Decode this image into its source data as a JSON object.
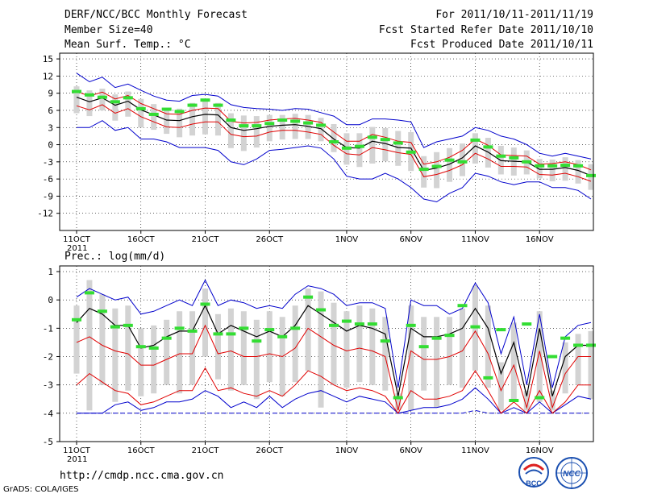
{
  "header": {
    "title": "DERF/NCC/BCC Monthly Forecast",
    "member_size": "Member Size=40",
    "variable": "Mean Surf. Temp.: °C",
    "period": "For 2011/10/11-2011/11/19",
    "started": "Fcst Started Refer Date 2011/10/10",
    "produced": "Fcst Produced Date 2011/10/11"
  },
  "footer": {
    "url": "http://cmdp.ncc.cma.gov.cn",
    "credit": "GrADS: COLA/IGES",
    "logo_bcc": "BCC",
    "logo_ncc": "NCC"
  },
  "colors": {
    "mean": "#000000",
    "spread": "#e00000",
    "extreme": "#0000cc",
    "box": "#d3d3d3",
    "climatology": "#33dd33",
    "grid": "#000000"
  },
  "chart_data": [
    {
      "type": "line",
      "title": "Mean Surf. Temp.: °C",
      "x_start_day": 11,
      "x_ticks": [
        {
          "index": 0,
          "label": "11OCT",
          "sub": "2011"
        },
        {
          "index": 5,
          "label": "16OCT"
        },
        {
          "index": 10,
          "label": "21OCT"
        },
        {
          "index": 15,
          "label": "26OCT"
        },
        {
          "index": 21,
          "label": "1NOV"
        },
        {
          "index": 26,
          "label": "6NOV"
        },
        {
          "index": 31,
          "label": "11NOV"
        },
        {
          "index": 36,
          "label": "16NOV"
        }
      ],
      "ylim": [
        -15,
        16
      ],
      "yticks": [
        15,
        12,
        9,
        6,
        3,
        0,
        -3,
        -6,
        -9,
        -12
      ],
      "series": [
        {
          "name": "ensemble-mean",
          "values": [
            8.3,
            7.5,
            8.2,
            6.9,
            7.6,
            6.1,
            5.2,
            4.3,
            4.2,
            4.9,
            5.3,
            5.2,
            3.0,
            2.5,
            2.8,
            3.2,
            3.4,
            3.5,
            3.2,
            2.8,
            1.0,
            -0.5,
            -0.6,
            0.6,
            0.2,
            -0.5,
            -0.6,
            -4.5,
            -4.1,
            -3.4,
            -2.3,
            -0.2,
            -1.3,
            -2.8,
            -2.9,
            -3.0,
            -4.3,
            -4.3,
            -4.0,
            -4.5,
            -5.4
          ]
        },
        {
          "name": "upper-spread",
          "values": [
            9.3,
            8.5,
            9.2,
            8.0,
            8.6,
            7.2,
            6.3,
            5.4,
            5.3,
            6.0,
            6.4,
            6.3,
            4.1,
            3.8,
            3.9,
            4.3,
            4.5,
            4.6,
            4.3,
            3.9,
            2.2,
            0.6,
            0.6,
            1.8,
            1.3,
            0.6,
            0.4,
            -3.4,
            -3.0,
            -2.2,
            -1.0,
            1.0,
            -0.1,
            -1.8,
            -1.9,
            -2.0,
            -3.4,
            -3.3,
            -3.0,
            -3.5,
            -4.4
          ]
        },
        {
          "name": "lower-spread",
          "values": [
            6.8,
            6.1,
            7.0,
            5.5,
            6.3,
            4.9,
            4.0,
            3.1,
            3.0,
            3.6,
            4.0,
            4.0,
            1.8,
            1.4,
            1.5,
            2.2,
            2.5,
            2.5,
            2.2,
            1.8,
            -0.1,
            -1.6,
            -1.8,
            -0.5,
            -0.9,
            -1.4,
            -1.7,
            -5.6,
            -5.2,
            -4.5,
            -3.5,
            -1.5,
            -2.5,
            -3.8,
            -3.8,
            -3.9,
            -5.2,
            -5.3,
            -5.0,
            -5.6,
            -6.4
          ]
        },
        {
          "name": "ensemble-max",
          "values": [
            12.5,
            11.0,
            11.8,
            10.0,
            10.6,
            9.5,
            8.5,
            7.8,
            7.6,
            8.6,
            8.8,
            8.5,
            7.0,
            6.5,
            6.3,
            6.2,
            6.0,
            6.3,
            6.2,
            5.6,
            5.0,
            3.5,
            3.5,
            4.5,
            4.5,
            4.3,
            4.0,
            -0.5,
            0.5,
            1.0,
            1.5,
            3.0,
            2.5,
            1.5,
            1.0,
            0.0,
            -1.5,
            -2.0,
            -1.5,
            -2.0,
            -2.5
          ]
        },
        {
          "name": "ensemble-min",
          "values": [
            3.0,
            3.0,
            4.2,
            2.5,
            3.0,
            1.0,
            1.0,
            0.5,
            -0.5,
            -0.5,
            -0.5,
            -1.0,
            -3.0,
            -3.5,
            -2.5,
            -1.0,
            -0.8,
            -0.5,
            -0.2,
            -0.6,
            -2.5,
            -5.5,
            -6.0,
            -6.0,
            -5.0,
            -6.0,
            -7.5,
            -9.5,
            -10.0,
            -8.5,
            -7.5,
            -5.0,
            -5.5,
            -6.5,
            -7.0,
            -6.5,
            -6.5,
            -7.5,
            -7.5,
            -8.0,
            -9.5
          ]
        },
        {
          "name": "climatology",
          "values": [
            9.3,
            8.7,
            8.3,
            7.5,
            8.2,
            6.3,
            5.3,
            6.2,
            5.8,
            6.9,
            7.8,
            6.9,
            4.3,
            3.3,
            3.3,
            3.7,
            4.3,
            4.1,
            3.8,
            3.4,
            0.5,
            -0.6,
            -0.3,
            1.3,
            0.9,
            0.3,
            -1.3,
            -4.3,
            -3.8,
            -2.7,
            -3.0,
            0.8,
            -0.4,
            -2.0,
            -2.3,
            -3.0,
            -3.7,
            -3.7,
            -3.6,
            -3.7,
            -5.4
          ]
        },
        {
          "name": "box-high",
          "values": [
            10.2,
            9.5,
            9.8,
            8.8,
            9.3,
            8.0,
            7.1,
            6.4,
            6.3,
            7.3,
            7.6,
            7.3,
            5.5,
            5.1,
            5.0,
            5.2,
            5.2,
            5.4,
            5.2,
            4.7,
            3.6,
            2.0,
            2.0,
            3.1,
            2.9,
            2.4,
            2.2,
            -2.0,
            -1.3,
            -0.6,
            0.2,
            2.0,
            1.2,
            -0.2,
            -0.5,
            -1.0,
            -2.5,
            -2.6,
            -2.2,
            -2.7,
            -3.4
          ]
        },
        {
          "name": "box-low",
          "values": [
            5.5,
            5.0,
            6.0,
            4.2,
            4.9,
            3.0,
            2.6,
            1.9,
            1.3,
            1.6,
            1.8,
            1.6,
            -0.6,
            -1.1,
            -0.5,
            0.6,
            0.9,
            1.0,
            1.0,
            0.6,
            -1.3,
            -3.5,
            -3.9,
            -3.3,
            -2.9,
            -3.7,
            -4.6,
            -7.5,
            -7.6,
            -6.5,
            -5.5,
            -3.3,
            -4.0,
            -5.2,
            -5.4,
            -5.2,
            -5.9,
            -6.4,
            -6.3,
            -6.8,
            -7.9
          ]
        }
      ]
    },
    {
      "type": "line",
      "title": "Prec.: log(mm/d)",
      "x_ticks": [
        {
          "index": 0,
          "label": "11OCT",
          "sub": "2011"
        },
        {
          "index": 5,
          "label": "16OCT"
        },
        {
          "index": 10,
          "label": "21OCT"
        },
        {
          "index": 15,
          "label": "26OCT"
        },
        {
          "index": 21,
          "label": "1NOV"
        },
        {
          "index": 26,
          "label": "6NOV"
        },
        {
          "index": 31,
          "label": "11NOV"
        },
        {
          "index": 36,
          "label": "16NOV"
        }
      ],
      "ylim": [
        -5,
        1.2
      ],
      "yticks": [
        1,
        0,
        -1,
        -2,
        -3,
        -4,
        -5
      ],
      "series": [
        {
          "name": "ensemble-mean",
          "values": [
            -0.8,
            -0.3,
            -0.5,
            -0.9,
            -0.9,
            -1.7,
            -1.6,
            -1.3,
            -1.1,
            -1.1,
            -0.2,
            -1.2,
            -0.9,
            -1.1,
            -1.3,
            -1.1,
            -1.3,
            -0.9,
            -0.2,
            -0.5,
            -0.8,
            -1.1,
            -0.9,
            -1.0,
            -1.2,
            -3.4,
            -1.0,
            -1.3,
            -1.3,
            -1.2,
            -1.0,
            -0.3,
            -1.0,
            -2.6,
            -1.5,
            -3.4,
            -1.0,
            -3.4,
            -2.0,
            -1.6,
            -1.6
          ]
        },
        {
          "name": "upper-spread",
          "values": [
            -1.5,
            -1.3,
            -1.6,
            -1.8,
            -1.9,
            -2.3,
            -2.3,
            -2.1,
            -1.9,
            -1.9,
            -0.9,
            -1.9,
            -1.8,
            -2.0,
            -2.0,
            -1.9,
            -2.0,
            -1.7,
            -1.0,
            -1.3,
            -1.6,
            -1.8,
            -1.7,
            -1.8,
            -2.0,
            -3.9,
            -1.8,
            -2.1,
            -2.1,
            -2.0,
            -1.8,
            -1.1,
            -1.9,
            -3.2,
            -2.3,
            -3.8,
            -1.8,
            -3.8,
            -2.6,
            -2.0,
            -2.0
          ]
        },
        {
          "name": "lower-spread",
          "values": [
            -3.0,
            -2.6,
            -2.9,
            -3.2,
            -3.3,
            -3.7,
            -3.6,
            -3.4,
            -3.2,
            -3.2,
            -2.4,
            -3.2,
            -3.1,
            -3.3,
            -3.4,
            -3.2,
            -3.4,
            -3.0,
            -2.5,
            -2.7,
            -3.0,
            -3.2,
            -3.1,
            -3.2,
            -3.4,
            -4.0,
            -3.2,
            -3.5,
            -3.5,
            -3.4,
            -3.2,
            -2.5,
            -3.2,
            -4.0,
            -3.6,
            -4.0,
            -3.2,
            -4.0,
            -3.6,
            -3.0,
            -3.0
          ]
        },
        {
          "name": "ensemble-max",
          "values": [
            0.1,
            0.4,
            0.2,
            0.0,
            0.1,
            -0.5,
            -0.4,
            -0.2,
            0.0,
            -0.2,
            0.7,
            -0.2,
            0.0,
            -0.1,
            -0.3,
            -0.2,
            -0.3,
            0.2,
            0.5,
            0.4,
            0.2,
            -0.2,
            -0.1,
            -0.1,
            -0.3,
            -3.1,
            0.0,
            -0.2,
            -0.2,
            -0.5,
            -0.3,
            0.6,
            -0.1,
            -1.9,
            -0.6,
            -3.0,
            -0.5,
            -3.1,
            -1.3,
            -0.9,
            -0.8
          ]
        },
        {
          "name": "ensemble-min",
          "values": [
            -4.0,
            -4.0,
            -4.0,
            -3.7,
            -3.6,
            -3.9,
            -3.8,
            -3.6,
            -3.6,
            -3.5,
            -3.2,
            -3.4,
            -3.8,
            -3.6,
            -3.8,
            -3.4,
            -3.8,
            -3.5,
            -3.3,
            -3.2,
            -3.4,
            -3.6,
            -3.4,
            -3.5,
            -3.6,
            -4.0,
            -3.9,
            -3.8,
            -3.8,
            -3.7,
            -3.5,
            -3.1,
            -3.5,
            -4.0,
            -3.8,
            -4.0,
            -3.6,
            -4.0,
            -3.7,
            -3.4,
            -3.5
          ]
        },
        {
          "name": "floor",
          "values": [
            -4.0,
            -4.0,
            -4.0,
            -4.0,
            -4.0,
            -4.0,
            -4.0,
            -4.0,
            -4.0,
            -4.0,
            -4.0,
            -4.0,
            -4.0,
            -4.0,
            -4.0,
            -4.0,
            -4.0,
            -4.0,
            -4.0,
            -4.0,
            -4.0,
            -4.0,
            -4.0,
            -4.0,
            -4.0,
            -4.0,
            -4.0,
            -4.0,
            -4.0,
            -4.0,
            -4.0,
            -3.9,
            -4.0,
            -4.0,
            -4.0,
            -4.0,
            -4.0,
            -4.0,
            -4.0,
            -4.0,
            -4.0
          ]
        },
        {
          "name": "climatology",
          "values": [
            -0.7,
            0.25,
            -0.4,
            -0.95,
            -0.9,
            -1.65,
            -1.7,
            -1.35,
            -1.0,
            -1.1,
            -0.15,
            -1.2,
            -1.2,
            -1.0,
            -1.45,
            -1.05,
            -1.3,
            -1.0,
            0.1,
            -0.35,
            -0.9,
            -0.75,
            -0.85,
            -0.85,
            -1.45,
            -3.45,
            -0.9,
            -1.65,
            -1.35,
            -1.25,
            -0.2,
            -0.95,
            -2.75,
            -1.05,
            -3.55,
            -0.85,
            -3.45,
            -2.0,
            -1.35,
            -1.6,
            -1.6
          ]
        },
        {
          "name": "box-high",
          "values": [
            -0.2,
            0.7,
            0.2,
            -0.3,
            -0.2,
            -1.0,
            -0.9,
            -0.7,
            -0.4,
            -0.4,
            0.4,
            -0.5,
            -0.3,
            -0.4,
            -0.7,
            -0.4,
            -0.6,
            -0.2,
            0.4,
            0.3,
            -0.1,
            -0.4,
            -0.2,
            -0.3,
            -0.6,
            -3.3,
            -0.2,
            -0.6,
            -0.6,
            -0.6,
            -0.3,
            0.5,
            -0.2,
            -2.2,
            -0.8,
            -3.2,
            -0.4,
            -3.2,
            -1.5,
            -1.2,
            -1.1
          ]
        },
        {
          "name": "box-low",
          "values": [
            -2.6,
            -3.9,
            -3.0,
            -3.6,
            -3.2,
            -3.4,
            -3.3,
            -3.0,
            -3.3,
            -3.0,
            -2.0,
            -2.8,
            -3.2,
            -3.0,
            -3.5,
            -2.9,
            -3.4,
            -2.9,
            -2.5,
            -3.8,
            -3.0,
            -3.1,
            -2.9,
            -3.0,
            -3.2,
            -3.9,
            -3.9,
            -3.2,
            -3.8,
            -3.0,
            -3.1,
            -2.5,
            -3.1,
            -3.9,
            -3.5,
            -3.9,
            -3.6,
            -3.9,
            -3.3,
            -3.0,
            -3.5
          ]
        }
      ]
    }
  ]
}
